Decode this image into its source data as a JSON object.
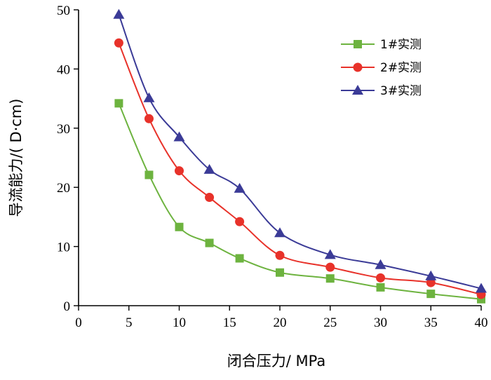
{
  "chart_data": {
    "type": "line",
    "title": "",
    "xlabel": "闭合压力/ MPa",
    "ylabel": "导流能力/( D·cm)",
    "xlim": [
      0,
      40
    ],
    "ylim": [
      0,
      50
    ],
    "xticks": [
      0,
      5,
      10,
      15,
      20,
      25,
      30,
      35,
      40
    ],
    "yticks": [
      0,
      10,
      20,
      30,
      40,
      50
    ],
    "grid": false,
    "legend_position": "top-right",
    "series": [
      {
        "name": "1#实测",
        "color": "#6db33f",
        "marker": "square",
        "x": [
          4,
          7,
          10,
          13,
          16,
          20,
          25,
          30,
          35,
          40
        ],
        "y": [
          34.2,
          22.1,
          13.3,
          10.6,
          8.0,
          5.6,
          4.6,
          3.1,
          2.0,
          1.1
        ]
      },
      {
        "name": "2#实测",
        "color": "#e8322a",
        "marker": "circle",
        "x": [
          4,
          7,
          10,
          13,
          16,
          20,
          25,
          30,
          35,
          40
        ],
        "y": [
          44.4,
          31.6,
          22.8,
          18.3,
          14.2,
          8.5,
          6.5,
          4.7,
          3.9,
          1.9
        ]
      },
      {
        "name": "3#实测",
        "color": "#3b3b97",
        "marker": "triangle",
        "x": [
          4,
          7,
          10,
          13,
          16,
          20,
          25,
          30,
          35,
          40
        ],
        "y": [
          49.2,
          35.1,
          28.5,
          23.0,
          19.8,
          12.3,
          8.6,
          6.9,
          5.0,
          2.9
        ]
      }
    ]
  }
}
